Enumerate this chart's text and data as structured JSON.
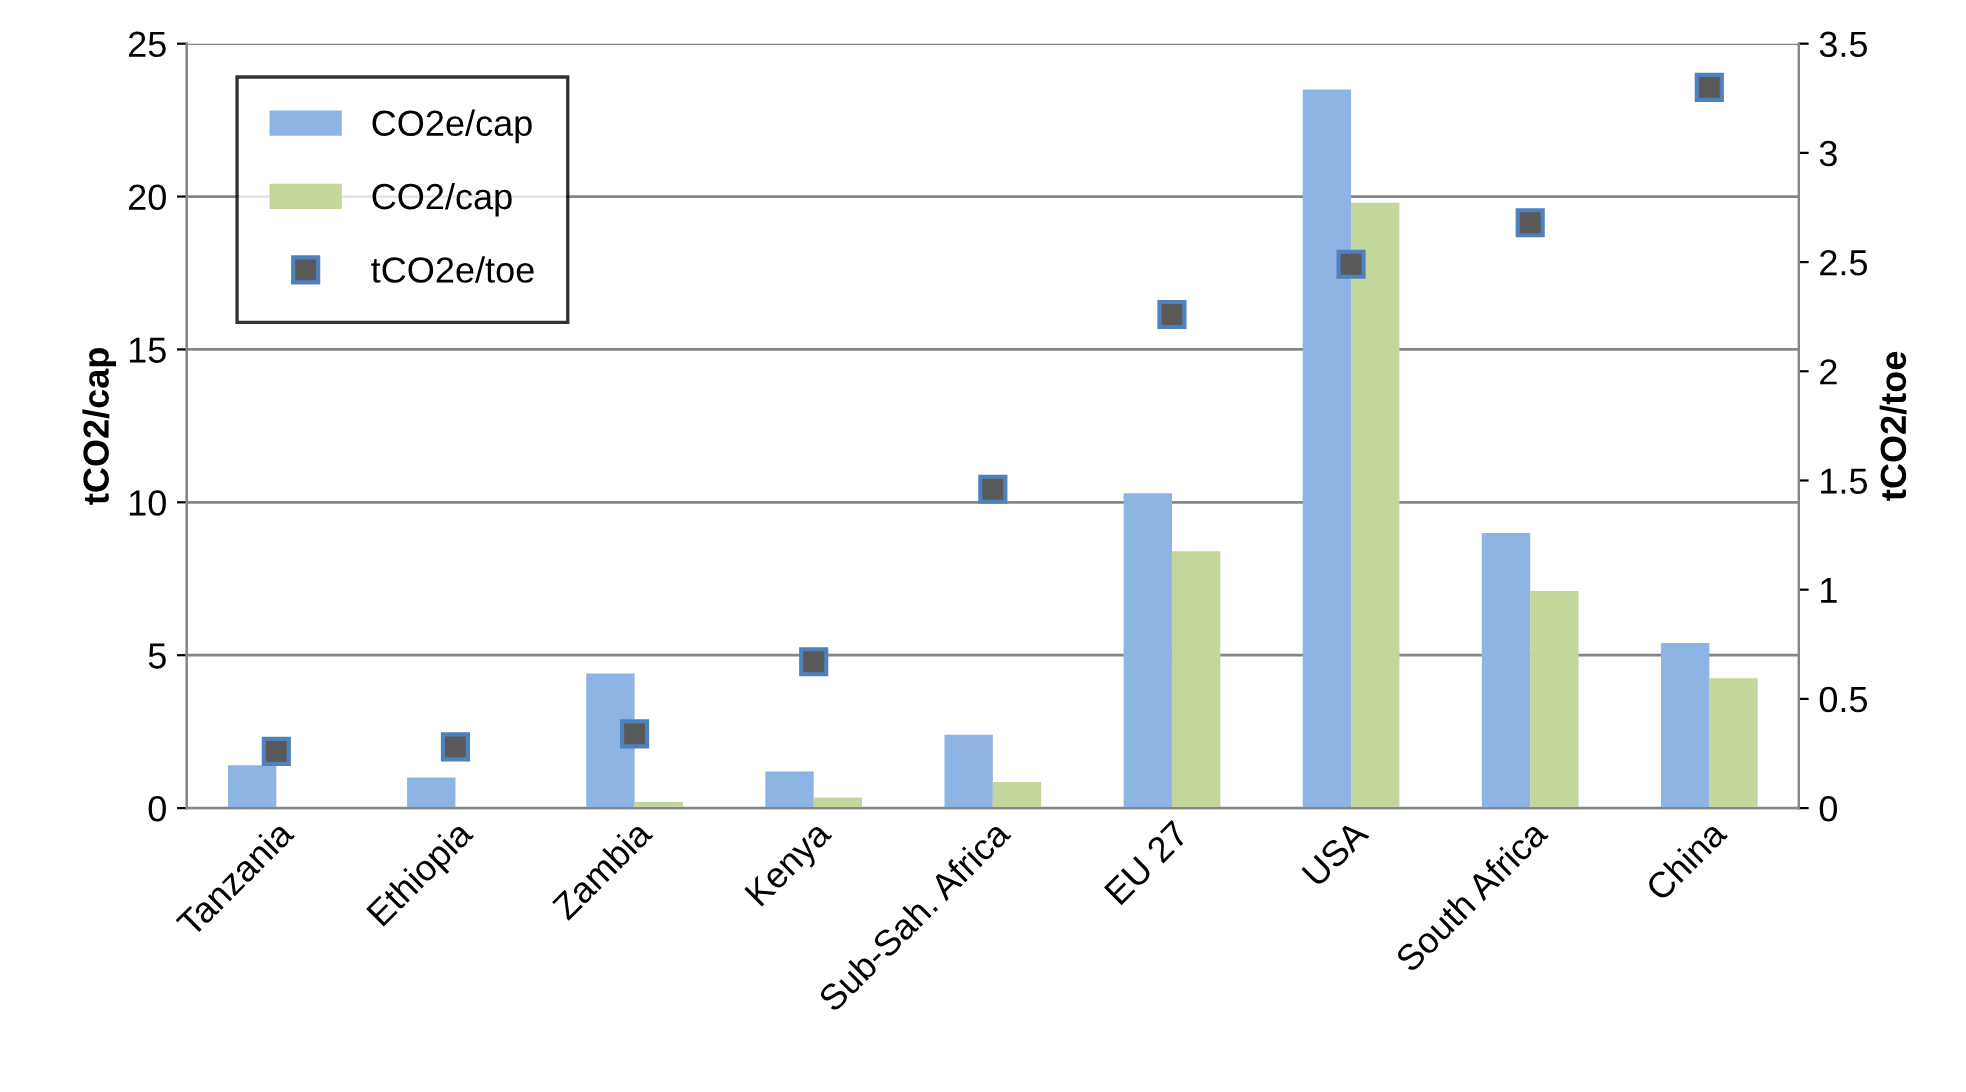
{
  "chart_data": {
    "type": "bar",
    "ylabel": "tCO2/cap",
    "y2label": "tCO2/toe",
    "categories": [
      "Tanzania",
      "Ethiopia",
      "Zambia",
      "Kenya",
      "Sub-Sah. Africa",
      "EU 27",
      "USA",
      "South Africa",
      "China"
    ],
    "series": [
      {
        "name": "CO2e/cap",
        "color": "#8db4e2",
        "values": [
          1.4,
          1.0,
          4.4,
          1.2,
          2.4,
          10.3,
          23.5,
          9.0,
          5.4
        ]
      },
      {
        "name": "CO2/cap",
        "color": "#c3d69b",
        "values": [
          null,
          null,
          0.2,
          0.35,
          0.85,
          8.4,
          19.8,
          7.1,
          4.25
        ]
      },
      {
        "name": "tCO2e/toe",
        "type": "scatter",
        "axis": "y2",
        "marker": "square",
        "color": "#595959",
        "values": [
          0.26,
          0.28,
          0.34,
          0.67,
          1.46,
          2.26,
          2.49,
          2.68,
          3.3
        ]
      }
    ],
    "ylim": [
      0,
      25
    ],
    "yticks": [
      0,
      5,
      10,
      15,
      20,
      25
    ],
    "y2lim": [
      0,
      3.5
    ],
    "y2ticks": [
      0,
      0.5,
      1,
      1.5,
      2,
      2.5,
      3,
      3.5
    ],
    "grid": "y",
    "legend": "top left"
  }
}
